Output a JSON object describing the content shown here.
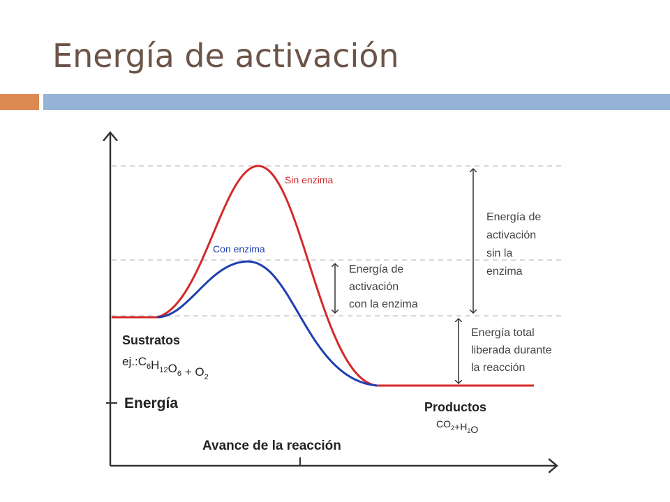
{
  "header": {
    "title": "Energía de activación"
  },
  "diagram": {
    "curve_labels": {
      "without_enzyme": "Sin enzima",
      "with_enzyme": "Con enzima"
    },
    "activation_with_enzyme": [
      "Energía de",
      "activación",
      "con la enzima"
    ],
    "activation_without_enzyme": [
      "Energía de",
      "activación",
      "sin la",
      "enzima"
    ],
    "total_energy": [
      "Energía total",
      "liberada durante",
      "la reacción"
    ],
    "substrates": {
      "label": "Sustratos",
      "prefix": "ej.:",
      "formula": [
        {
          "base": "C",
          "sub": "6"
        },
        {
          "base": "H",
          "sub": "12"
        },
        {
          "base": "O",
          "sub": "6"
        },
        {
          "base": " + O",
          "sub": "2"
        }
      ]
    },
    "products": {
      "label": "Productos",
      "formula": [
        {
          "base": "CO",
          "sub": "2"
        },
        {
          "base": "+H",
          "sub": "2"
        },
        {
          "base": "O"
        }
      ]
    },
    "y_axis_label": "Energía",
    "x_axis_label": "Avance de la reacción"
  }
}
